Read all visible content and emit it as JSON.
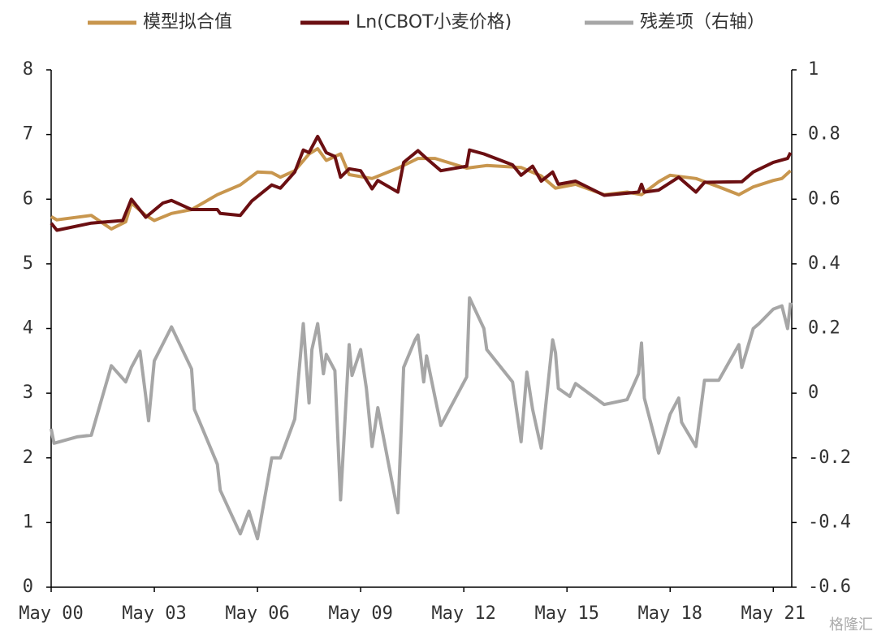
{
  "chart_data": {
    "type": "line",
    "legend": "top",
    "annotation": "格隆汇",
    "xlim": [
      "2000-05",
      "2021-12"
    ],
    "xticks": [
      {
        "value": "2000-05",
        "label": "May 00"
      },
      {
        "value": "2003-05",
        "label": "May 03"
      },
      {
        "value": "2006-05",
        "label": "May 06"
      },
      {
        "value": "2009-05",
        "label": "May 09"
      },
      {
        "value": "2012-05",
        "label": "May 12"
      },
      {
        "value": "2015-05",
        "label": "May 15"
      },
      {
        "value": "2018-05",
        "label": "May 18"
      },
      {
        "value": "2021-05",
        "label": "May 21"
      }
    ],
    "ylim": [
      0,
      8
    ],
    "yticks": [
      0,
      1,
      2,
      3,
      4,
      5,
      6,
      7,
      8
    ],
    "y2lim": [
      -0.6,
      1
    ],
    "y2ticks": [
      -0.6,
      -0.4,
      -0.2,
      0,
      0.2,
      0.4,
      0.6,
      0.8,
      1
    ],
    "series": [
      {
        "name": "模型拟合值",
        "color": "#c8964e",
        "x": [
          "2000-05",
          "2000-07",
          "2001-07",
          "2002-02",
          "2002-07",
          "2002-09",
          "2003-02",
          "2003-05",
          "2003-11",
          "2004-06",
          "2005-03",
          "2005-11",
          "2006-05",
          "2006-10",
          "2007-01",
          "2007-06",
          "2007-11",
          "2008-02",
          "2008-05",
          "2008-10",
          "2009-01",
          "2009-09",
          "2010-06",
          "2011-01",
          "2011-07",
          "2012-06",
          "2013-01",
          "2014-01",
          "2014-08",
          "2015-01",
          "2015-08",
          "2016-06",
          "2017-02",
          "2017-07",
          "2018-01",
          "2018-05",
          "2019-02",
          "2019-10",
          "2020-05",
          "2020-10",
          "2021-05",
          "2021-08",
          "2021-11"
        ],
        "values": [
          5.73,
          5.68,
          5.75,
          5.54,
          5.65,
          5.94,
          5.75,
          5.67,
          5.78,
          5.84,
          6.07,
          6.22,
          6.42,
          6.41,
          6.34,
          6.44,
          6.7,
          6.78,
          6.6,
          6.7,
          6.38,
          6.32,
          6.48,
          6.63,
          6.63,
          6.48,
          6.52,
          6.49,
          6.36,
          6.17,
          6.23,
          6.07,
          6.11,
          6.07,
          6.27,
          6.37,
          6.32,
          6.19,
          6.07,
          6.19,
          6.29,
          6.32,
          6.44
        ]
      },
      {
        "name": "Ln(CBOT小麦价格)",
        "color": "#6b0f12",
        "x": [
          "2000-05",
          "2000-07",
          "2001-07",
          "2002-06",
          "2002-09",
          "2003-02",
          "2003-08",
          "2003-11",
          "2004-06",
          "2005-03",
          "2005-04",
          "2005-11",
          "2006-03",
          "2006-10",
          "2007-01",
          "2007-06",
          "2007-09",
          "2007-11",
          "2008-02",
          "2008-05",
          "2008-08",
          "2008-10",
          "2009-01",
          "2009-05",
          "2009-09",
          "2009-11",
          "2010-06",
          "2010-08",
          "2011-01",
          "2011-04",
          "2011-09",
          "2012-06",
          "2012-07",
          "2012-12",
          "2013-10",
          "2014-01",
          "2014-05",
          "2014-08",
          "2014-12",
          "2015-02",
          "2015-08",
          "2016-06",
          "2017-06",
          "2017-07",
          "2017-08",
          "2018-01",
          "2018-08",
          "2019-02",
          "2019-05",
          "2020-06",
          "2020-10",
          "2021-05",
          "2021-10",
          "2021-11"
        ],
        "values": [
          5.63,
          5.52,
          5.63,
          5.67,
          6.0,
          5.72,
          5.94,
          5.98,
          5.84,
          5.84,
          5.78,
          5.75,
          5.97,
          6.22,
          6.17,
          6.42,
          6.76,
          6.72,
          6.97,
          6.72,
          6.66,
          6.34,
          6.47,
          6.44,
          6.16,
          6.29,
          6.11,
          6.57,
          6.75,
          6.63,
          6.44,
          6.51,
          6.76,
          6.7,
          6.53,
          6.37,
          6.51,
          6.28,
          6.42,
          6.23,
          6.28,
          6.06,
          6.11,
          6.23,
          6.11,
          6.14,
          6.34,
          6.11,
          6.26,
          6.27,
          6.42,
          6.57,
          6.63,
          6.72
        ]
      },
      {
        "name": "残差项（右轴）",
        "color": "#a6a6a6",
        "axis": "y2",
        "x": [
          "2000-05",
          "2000-06",
          "2001-02",
          "2001-07",
          "2002-02",
          "2002-07",
          "2002-09",
          "2002-12",
          "2003-02",
          "2003-03",
          "2003-05",
          "2003-11",
          "2004-06",
          "2004-07",
          "2005-03",
          "2005-04",
          "2005-11",
          "2006-02",
          "2006-05",
          "2006-10",
          "2007-01",
          "2007-06",
          "2007-09",
          "2007-11",
          "2007-12",
          "2008-02",
          "2008-04",
          "2008-05",
          "2008-08",
          "2008-10",
          "2009-01",
          "2009-02",
          "2009-05",
          "2009-07",
          "2009-09",
          "2009-11",
          "2010-06",
          "2010-08",
          "2010-12",
          "2011-01",
          "2011-03",
          "2011-04",
          "2011-07",
          "2011-09",
          "2012-06",
          "2012-07",
          "2012-12",
          "2013-01",
          "2013-10",
          "2014-01",
          "2014-03",
          "2014-05",
          "2014-07",
          "2014-08",
          "2014-12",
          "2015-01",
          "2015-02",
          "2015-06",
          "2015-08",
          "2016-06",
          "2017-02",
          "2017-06",
          "2017-07",
          "2017-08",
          "2018-01",
          "2018-05",
          "2018-08",
          "2018-09",
          "2019-02",
          "2019-05",
          "2019-10",
          "2020-05",
          "2020-06",
          "2020-10",
          "2020-12",
          "2021-05",
          "2021-08",
          "2021-10",
          "2021-11"
        ],
        "values": [
          -0.11,
          -0.155,
          -0.135,
          -0.13,
          0.085,
          0.035,
          0.08,
          0.13,
          -0.01,
          -0.085,
          0.1,
          0.205,
          0.075,
          -0.05,
          -0.22,
          -0.3,
          -0.435,
          -0.365,
          -0.45,
          -0.2,
          -0.2,
          -0.08,
          0.215,
          -0.03,
          0.135,
          0.215,
          0.06,
          0.12,
          0.07,
          -0.33,
          0.15,
          0.055,
          0.135,
          0.015,
          -0.165,
          -0.045,
          -0.37,
          0.08,
          0.165,
          0.18,
          0.035,
          0.115,
          -0.015,
          -0.1,
          0.05,
          0.295,
          0.2,
          0.135,
          0.035,
          -0.15,
          0.065,
          -0.05,
          -0.13,
          -0.17,
          0.165,
          0.125,
          0.015,
          -0.01,
          0.03,
          -0.035,
          -0.02,
          0.06,
          0.155,
          -0.015,
          -0.185,
          -0.065,
          -0.015,
          -0.09,
          -0.165,
          0.04,
          0.04,
          0.15,
          0.08,
          0.2,
          0.215,
          0.26,
          0.27,
          0.2,
          0.28
        ]
      }
    ]
  }
}
